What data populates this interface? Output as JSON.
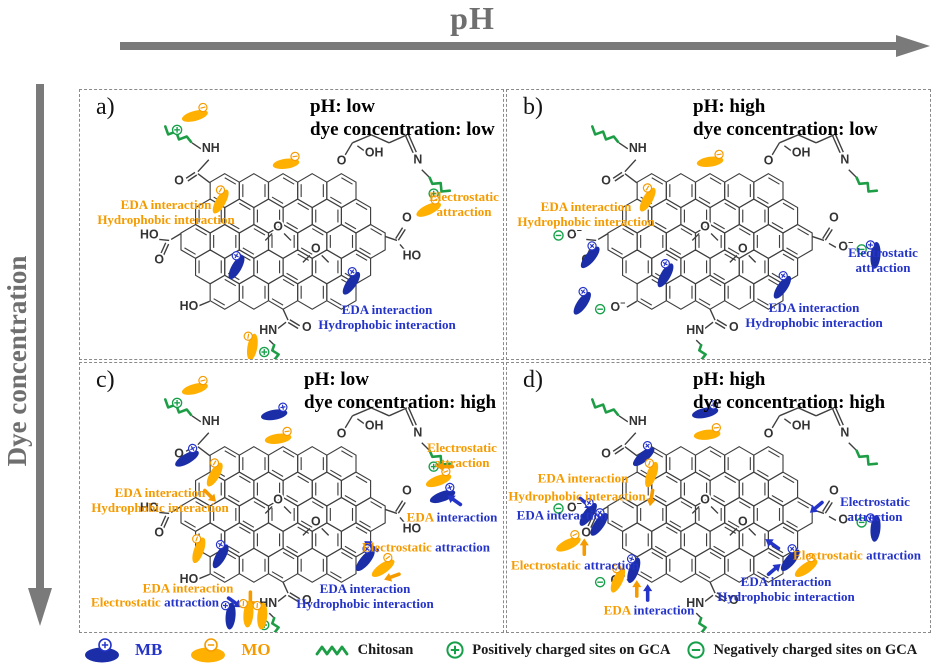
{
  "axes": {
    "x_label": "pH",
    "y_label": "Dye concentration"
  },
  "panels": {
    "a": {
      "letter": "a)",
      "title": [
        "pH: low",
        "dye concentration: low"
      ],
      "labels": [
        {
          "lines": [
            [
              {
                "t": "EDA interaction",
                "c": "orange"
              }
            ],
            [
              {
                "t": "Hydrophobic interaction",
                "c": "orange"
              }
            ]
          ]
        },
        {
          "lines": [
            [
              {
                "t": "Electrostatic",
                "c": "orange"
              }
            ],
            [
              {
                "t": "attraction",
                "c": "orange"
              }
            ]
          ]
        },
        {
          "lines": [
            [
              {
                "t": "EDA interaction",
                "c": "blue"
              }
            ],
            [
              {
                "t": "Hydrophobic interaction",
                "c": "blue"
              }
            ]
          ]
        }
      ]
    },
    "b": {
      "letter": "b)",
      "title": [
        "pH: high",
        "dye concentration: low"
      ],
      "labels": [
        {
          "lines": [
            [
              {
                "t": "EDA interaction",
                "c": "orange"
              }
            ],
            [
              {
                "t": "Hydrophobic interaction",
                "c": "orange"
              }
            ]
          ]
        },
        {
          "lines": [
            [
              {
                "t": "Electrostatic",
                "c": "blue"
              }
            ],
            [
              {
                "t": "attraction",
                "c": "blue"
              }
            ]
          ]
        },
        {
          "lines": [
            [
              {
                "t": "EDA interaction",
                "c": "blue"
              }
            ],
            [
              {
                "t": "Hydrophobic interaction",
                "c": "blue"
              }
            ]
          ]
        }
      ]
    },
    "c": {
      "letter": "c)",
      "title": [
        "pH: low",
        "dye concentration: high"
      ],
      "labels": [
        {
          "lines": [
            [
              {
                "t": "EDA interaction",
                "c": "orange"
              }
            ],
            [
              {
                "t": "Hydrophobic interaction",
                "c": "orange"
              }
            ]
          ]
        },
        {
          "lines": [
            [
              {
                "t": "Electrostatic",
                "c": "orange"
              }
            ],
            [
              {
                "t": "attraction",
                "c": "orange"
              }
            ]
          ]
        },
        {
          "lines": [
            [
              {
                "t": "EDA ",
                "c": "orange"
              },
              {
                "t": "interaction",
                "c": "blue"
              }
            ]
          ]
        },
        {
          "lines": [
            [
              {
                "t": "Electrostatic ",
                "c": "orange"
              },
              {
                "t": "attraction",
                "c": "blue"
              }
            ]
          ]
        },
        {
          "lines": [
            [
              {
                "t": "EDA interaction",
                "c": "blue"
              }
            ],
            [
              {
                "t": "Hydrophobic interaction",
                "c": "blue"
              }
            ]
          ]
        },
        {
          "lines": [
            [
              {
                "t": "EDA interaction",
                "c": "orange"
              }
            ]
          ]
        },
        {
          "lines": [
            [
              {
                "t": "Electrostatic ",
                "c": "orange"
              },
              {
                "t": "attraction",
                "c": "blue"
              }
            ]
          ]
        }
      ]
    },
    "d": {
      "letter": "d)",
      "title": [
        "pH: high",
        "dye concentration: high"
      ],
      "labels": [
        {
          "lines": [
            [
              {
                "t": "EDA interaction",
                "c": "orange"
              }
            ]
          ]
        },
        {
          "lines": [
            [
              {
                "t": "Hydrophobic interaction",
                "c": "orange"
              }
            ]
          ]
        },
        {
          "lines": [
            [
              {
                "t": "EDA interaction",
                "c": "blue"
              }
            ]
          ]
        },
        {
          "lines": [
            [
              {
                "t": "Electrostatic ",
                "c": "orange"
              },
              {
                "t": "attraction",
                "c": "blue"
              }
            ]
          ]
        },
        {
          "lines": [
            [
              {
                "t": "EDA ",
                "c": "orange"
              },
              {
                "t": "interaction",
                "c": "blue"
              }
            ]
          ]
        },
        {
          "lines": [
            [
              {
                "t": "Electrostatic",
                "c": "blue"
              }
            ],
            [
              {
                "t": "attraction",
                "c": "blue"
              }
            ]
          ]
        },
        {
          "lines": [
            [
              {
                "t": "Electrostatic ",
                "c": "orange"
              },
              {
                "t": "attraction",
                "c": "blue"
              }
            ]
          ]
        },
        {
          "lines": [
            [
              {
                "t": "EDA interaction",
                "c": "blue"
              }
            ],
            [
              {
                "t": "Hydrophobic interaction",
                "c": "blue"
              }
            ]
          ]
        }
      ]
    }
  },
  "molecule": {
    "nh": "NH",
    "hn": "HN",
    "o": "O",
    "oh": "OH",
    "ho": "HO",
    "n": "N",
    "minus": "−"
  },
  "legend": {
    "items": [
      {
        "label": "MB"
      },
      {
        "label": "MO"
      },
      {
        "label": "Chitosan"
      },
      {
        "label": "Positively charged sites on GCA"
      },
      {
        "label": "Negatively charged sites on GCA"
      }
    ]
  },
  "colors": {
    "orange": "#F59B00",
    "blue": "#2433C8",
    "mb_fill": "#1B2EA8",
    "mo_fill": "#FFB000",
    "green": "#1D9E46",
    "charge_green": "#17A04A",
    "gray": "#7a7a7a",
    "structure": "#3f3f3f"
  }
}
